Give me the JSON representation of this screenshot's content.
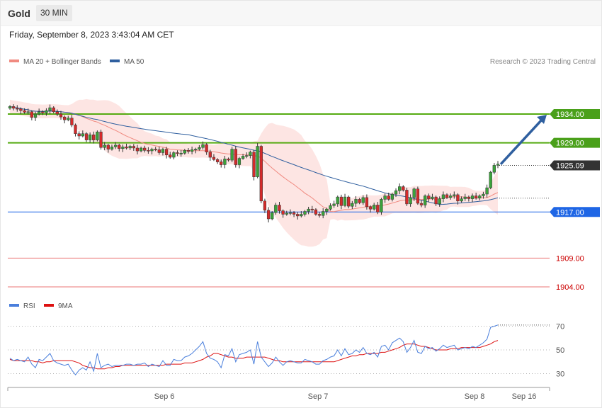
{
  "header": {
    "symbol": "Gold",
    "timeframe": "30 MIN"
  },
  "datetime": "Friday, September 8, 2023 3:43:04 AM CET",
  "attribution": "Research © 2023 Trading Central",
  "colors": {
    "ma20": "#f08a80",
    "ma50": "#2f5f9f",
    "band": "#fde0de",
    "resistance": "#55aa11",
    "support": "#1f66e5",
    "support_low": "#e23a3a",
    "current": "#333333",
    "up_candle": "#3aa33a",
    "down_candle": "#d42a2a",
    "rsi": "#4a7fdc",
    "rsi_ma": "#dd1111",
    "arrow": "#2f5f9f"
  },
  "chart_data": [
    {
      "type": "candlestick",
      "title": "",
      "legend": [
        {
          "name": "MA 20 + Bollinger Bands",
          "color": "#f08a80"
        },
        {
          "name": "MA 50",
          "color": "#2f5f9f"
        }
      ],
      "legend_position": "top-left",
      "x_ticks": [
        "Sep 6",
        "Sep 7",
        "Sep 8",
        "Sep 16"
      ],
      "ylim": [
        1904,
        1934.6
      ],
      "grid": false,
      "levels": [
        {
          "value": 1934.0,
          "label": "1934.00",
          "kind": "resistance"
        },
        {
          "value": 1929.0,
          "label": "1929.00",
          "kind": "resistance"
        },
        {
          "value": 1925.09,
          "label": "1925.09",
          "kind": "current"
        },
        {
          "value": 1917.0,
          "label": "1917.00",
          "kind": "support"
        },
        {
          "value": 1909.0,
          "label": "1909.00",
          "kind": "support_low"
        },
        {
          "value": 1904.0,
          "label": "1904.00",
          "kind": "support_low"
        }
      ],
      "dotted_reference": 1919.4,
      "close": [
        1935.3,
        1935.0,
        1934.9,
        1934.6,
        1934.3,
        1934.4,
        1933.4,
        1934.0,
        1934.4,
        1934.2,
        1934.6,
        1935.1,
        1934.4,
        1934.0,
        1933.5,
        1933.0,
        1933.3,
        1932.1,
        1930.6,
        1930.2,
        1930.6,
        1929.5,
        1930.4,
        1929.5,
        1930.9,
        1928.2,
        1928.6,
        1927.9,
        1928.3,
        1928.6,
        1928.0,
        1928.3,
        1928.1,
        1928.4,
        1928.1,
        1927.6,
        1928.1,
        1927.7,
        1927.6,
        1927.9,
        1927.8,
        1927.3,
        1927.9,
        1926.9,
        1926.5,
        1927.3,
        1927.2,
        1927.2,
        1927.7,
        1927.5,
        1927.8,
        1927.9,
        1928.2,
        1928.7,
        1927.4,
        1926.5,
        1926.1,
        1925.7,
        1925.2,
        1926.2,
        1926.0,
        1927.9,
        1925.2,
        1926.3,
        1926.7,
        1926.8,
        1927.4,
        1923.1,
        1928.4,
        1918.9,
        1917.3,
        1915.8,
        1916.9,
        1918.2,
        1917.2,
        1916.6,
        1916.8,
        1916.9,
        1916.6,
        1916.3,
        1916.6,
        1917.1,
        1917.5,
        1917.4,
        1916.6,
        1916.4,
        1917.1,
        1917.5,
        1918.1,
        1918.4,
        1919.6,
        1918.1,
        1919.6,
        1918.0,
        1918.5,
        1919.2,
        1918.6,
        1919.5,
        1917.9,
        1917.5,
        1918.2,
        1917.0,
        1919.2,
        1919.8,
        1919.2,
        1920.1,
        1920.7,
        1921.4,
        1920.8,
        1918.4,
        1919.5,
        1921.0,
        1918.5,
        1918.2,
        1919.8,
        1919.3,
        1919.6,
        1918.4,
        1919.3,
        1920.0,
        1919.5,
        1919.8,
        1920.0,
        1918.9,
        1919.3,
        1919.6,
        1919.3,
        1919.8,
        1919.4,
        1919.8,
        1920.1,
        1921.2,
        1923.9,
        1925.1,
        1925.3
      ],
      "series": [
        {
          "name": "RSI",
          "values": [
            43,
            41,
            42,
            41,
            40,
            44,
            38,
            35,
            42,
            41,
            44,
            47,
            41,
            39,
            38,
            37,
            38,
            33,
            29,
            33,
            35,
            33,
            40,
            32,
            47,
            35,
            37,
            38,
            36,
            37,
            37,
            37,
            38,
            38,
            37,
            38,
            38,
            39,
            36,
            38,
            37,
            36,
            41,
            37,
            37,
            42,
            41,
            41,
            44,
            45,
            47,
            50,
            53,
            57,
            47,
            43,
            42,
            40,
            35,
            46,
            45,
            51,
            40,
            46,
            47,
            48,
            50,
            38,
            57,
            44,
            40,
            36,
            39,
            44,
            40,
            37,
            40,
            41,
            40,
            39,
            39,
            42,
            41,
            40,
            38,
            38,
            41,
            42,
            44,
            45,
            50,
            45,
            51,
            46,
            47,
            50,
            48,
            52,
            47,
            46,
            48,
            44,
            53,
            54,
            50,
            56,
            58,
            60,
            57,
            48,
            52,
            58,
            48,
            47,
            53,
            51,
            52,
            49,
            51,
            54,
            52,
            53,
            54,
            50,
            51,
            52,
            51,
            53,
            52,
            54,
            56,
            59,
            69,
            70,
            71
          ]
        },
        {
          "name": "9MA",
          "values": [
            42,
            41,
            41,
            41,
            41,
            41,
            41,
            40,
            40,
            39,
            40,
            40,
            41,
            41,
            41,
            41,
            41,
            41,
            40,
            39,
            37,
            36,
            35,
            35,
            34,
            34,
            34,
            35,
            35,
            36,
            36,
            37,
            37,
            37,
            37,
            37,
            37,
            37,
            37,
            37,
            37,
            37,
            37,
            38,
            38,
            38,
            38,
            38,
            39,
            39,
            39,
            40,
            41,
            42,
            44,
            45,
            47,
            47,
            46,
            45,
            44,
            44,
            43,
            43,
            43,
            44,
            44,
            44,
            44,
            44,
            44,
            43,
            42,
            41,
            41,
            40,
            40,
            40,
            40,
            40,
            40,
            40,
            40,
            40,
            40,
            40,
            40,
            40,
            40,
            40,
            41,
            42,
            43,
            44,
            45,
            45,
            46,
            46,
            47,
            47,
            47,
            47,
            48,
            48,
            49,
            50,
            51,
            52,
            54,
            55,
            55,
            55,
            54,
            53,
            53,
            52,
            51,
            50,
            50,
            50,
            50,
            51,
            51,
            51,
            52,
            52,
            52,
            52,
            52,
            52,
            53,
            54,
            55,
            57,
            58
          ]
        }
      ],
      "rsi_ticks": [
        70,
        50,
        30
      ],
      "rsi_ylim": [
        20,
        80
      ]
    }
  ],
  "rsi_legend": [
    {
      "name": "RSI",
      "color": "#4a7fdc"
    },
    {
      "name": "9MA",
      "color": "#dd1111"
    }
  ]
}
